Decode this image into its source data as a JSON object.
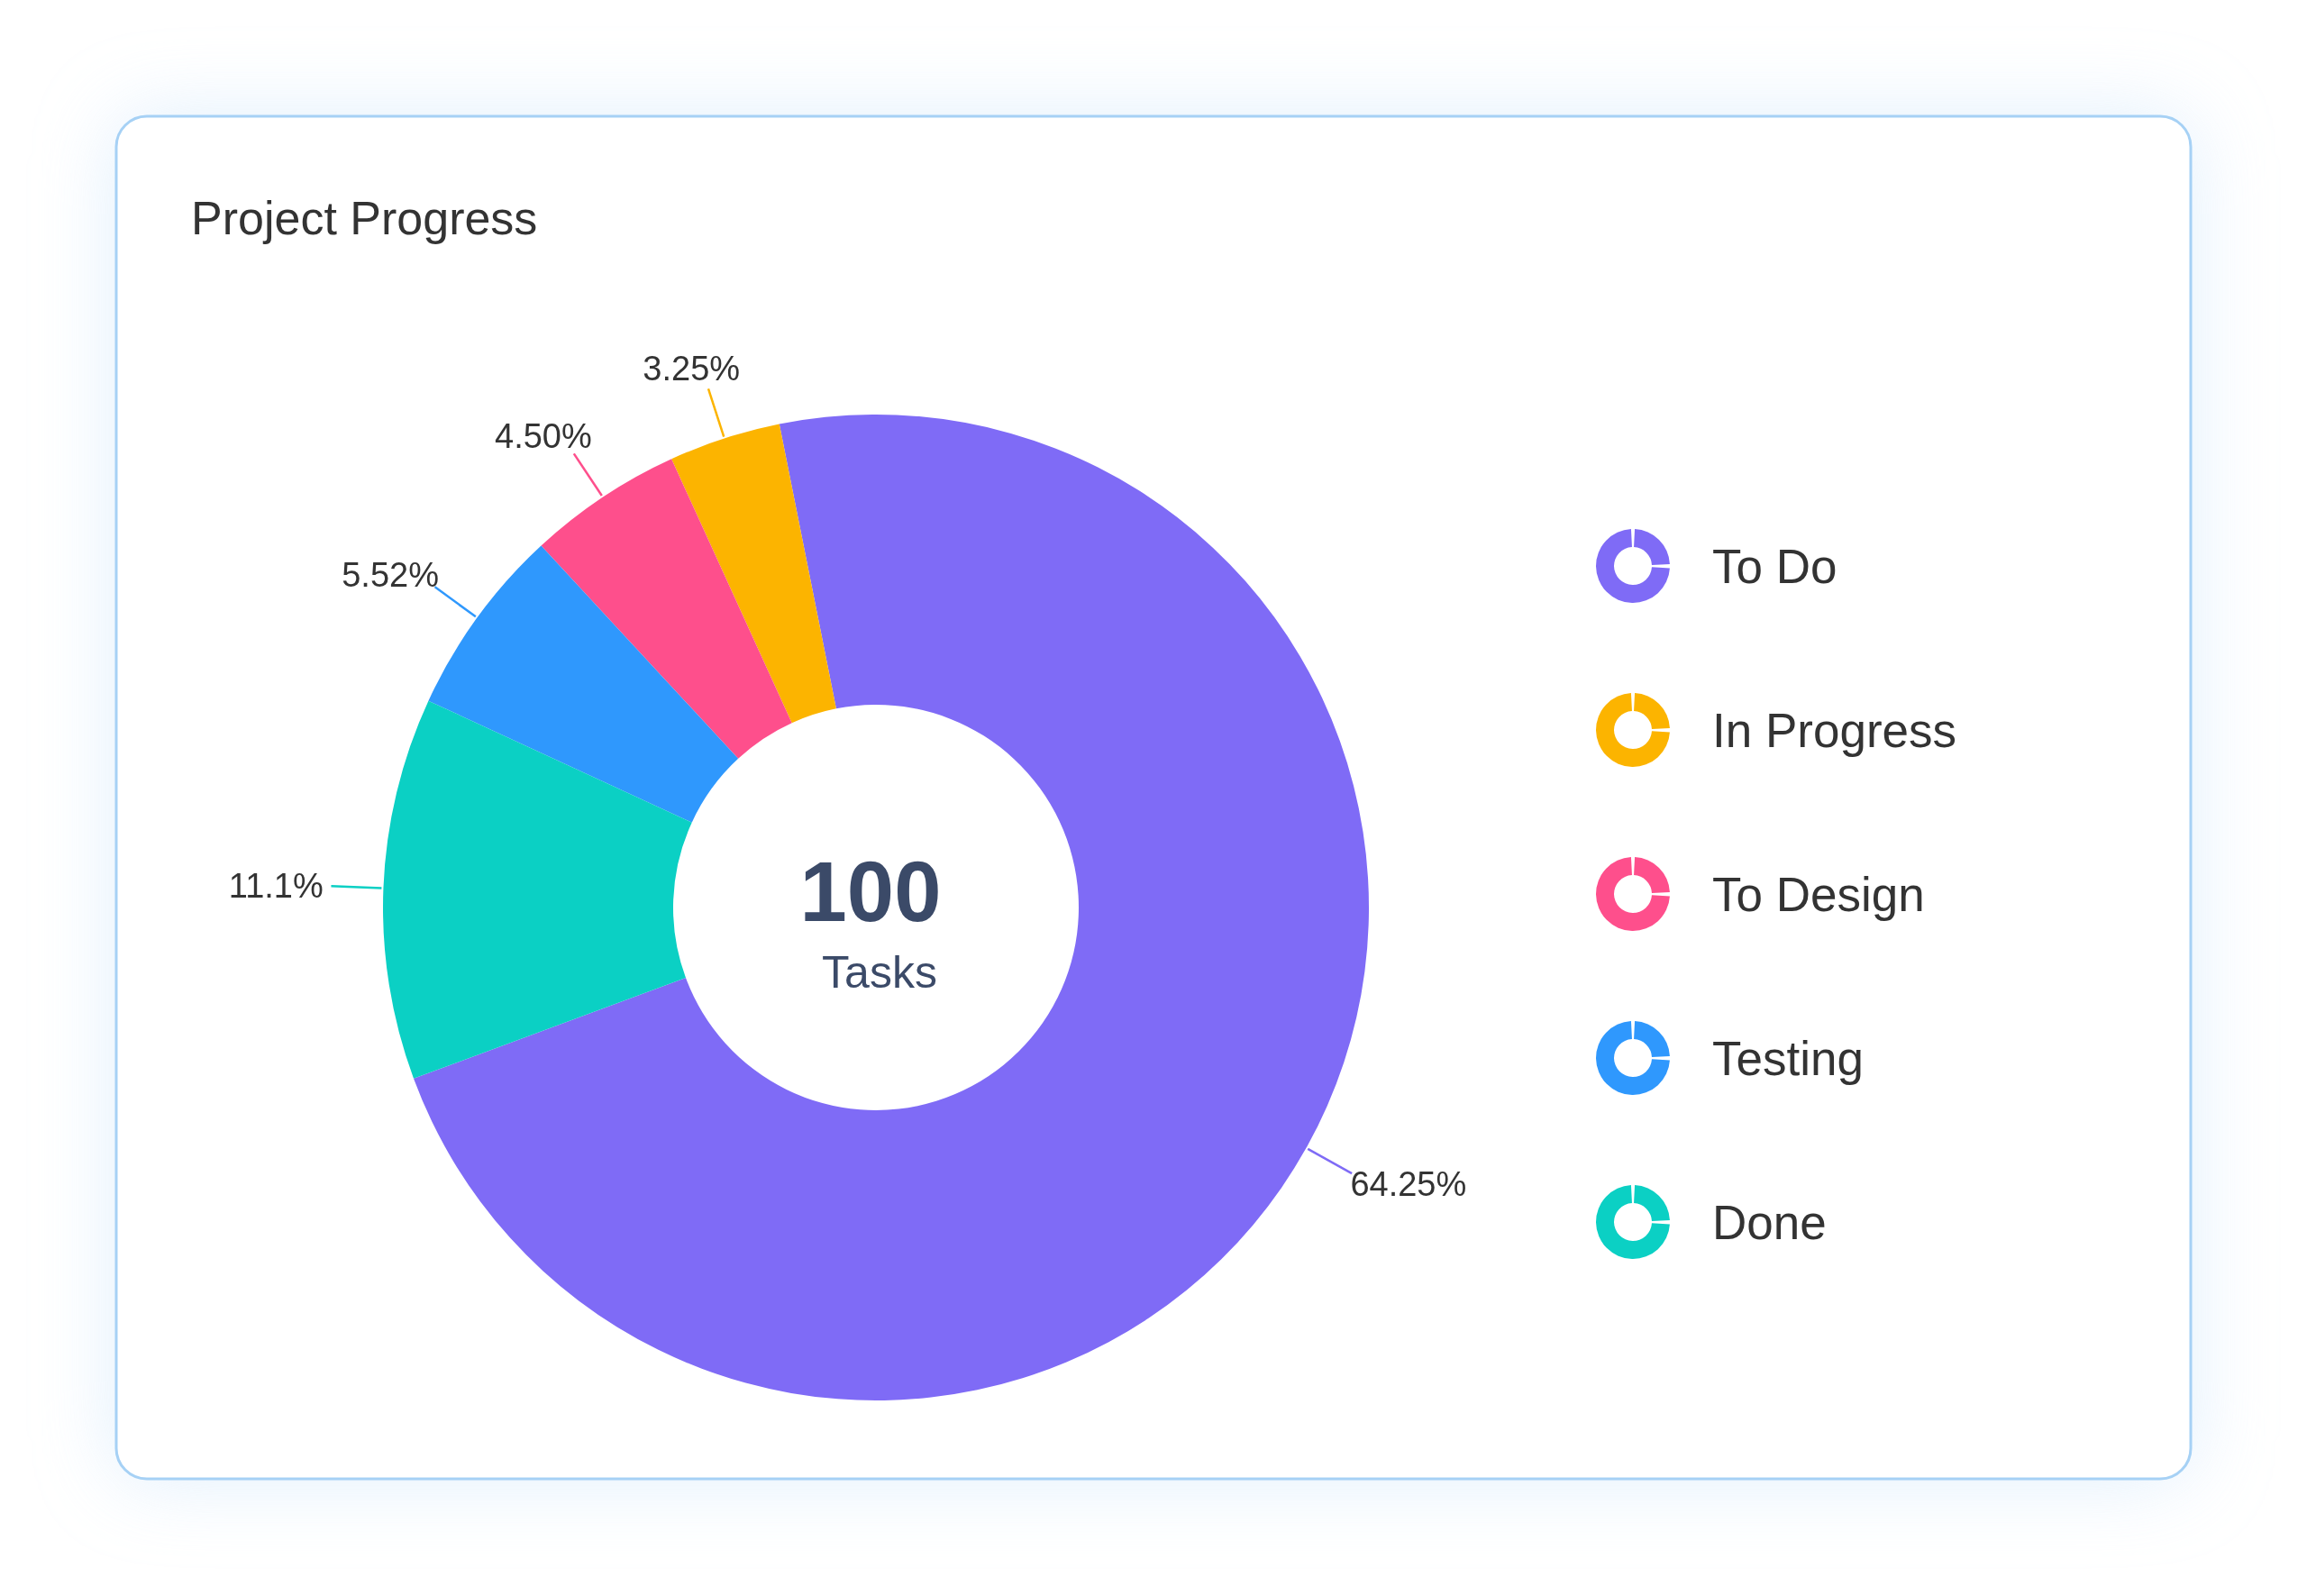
{
  "chart_data": {
    "type": "donut",
    "title": "Project Progress",
    "categories": [
      "To Do",
      "In Progress",
      "To Design",
      "Testing",
      "Done"
    ],
    "values": [
      64.25,
      3.25,
      4.5,
      5.52,
      11.1
    ],
    "colors": [
      "#7f6bf6",
      "#fcb400",
      "#fe4f8c",
      "#2f98fd",
      "#0bd0c4"
    ],
    "value_labels": [
      "64.25%",
      "3.25%",
      "4.50%",
      "5.52%",
      "11.1%"
    ],
    "annotations": [
      "100",
      "Tasks"
    ],
    "legend": "right"
  }
}
